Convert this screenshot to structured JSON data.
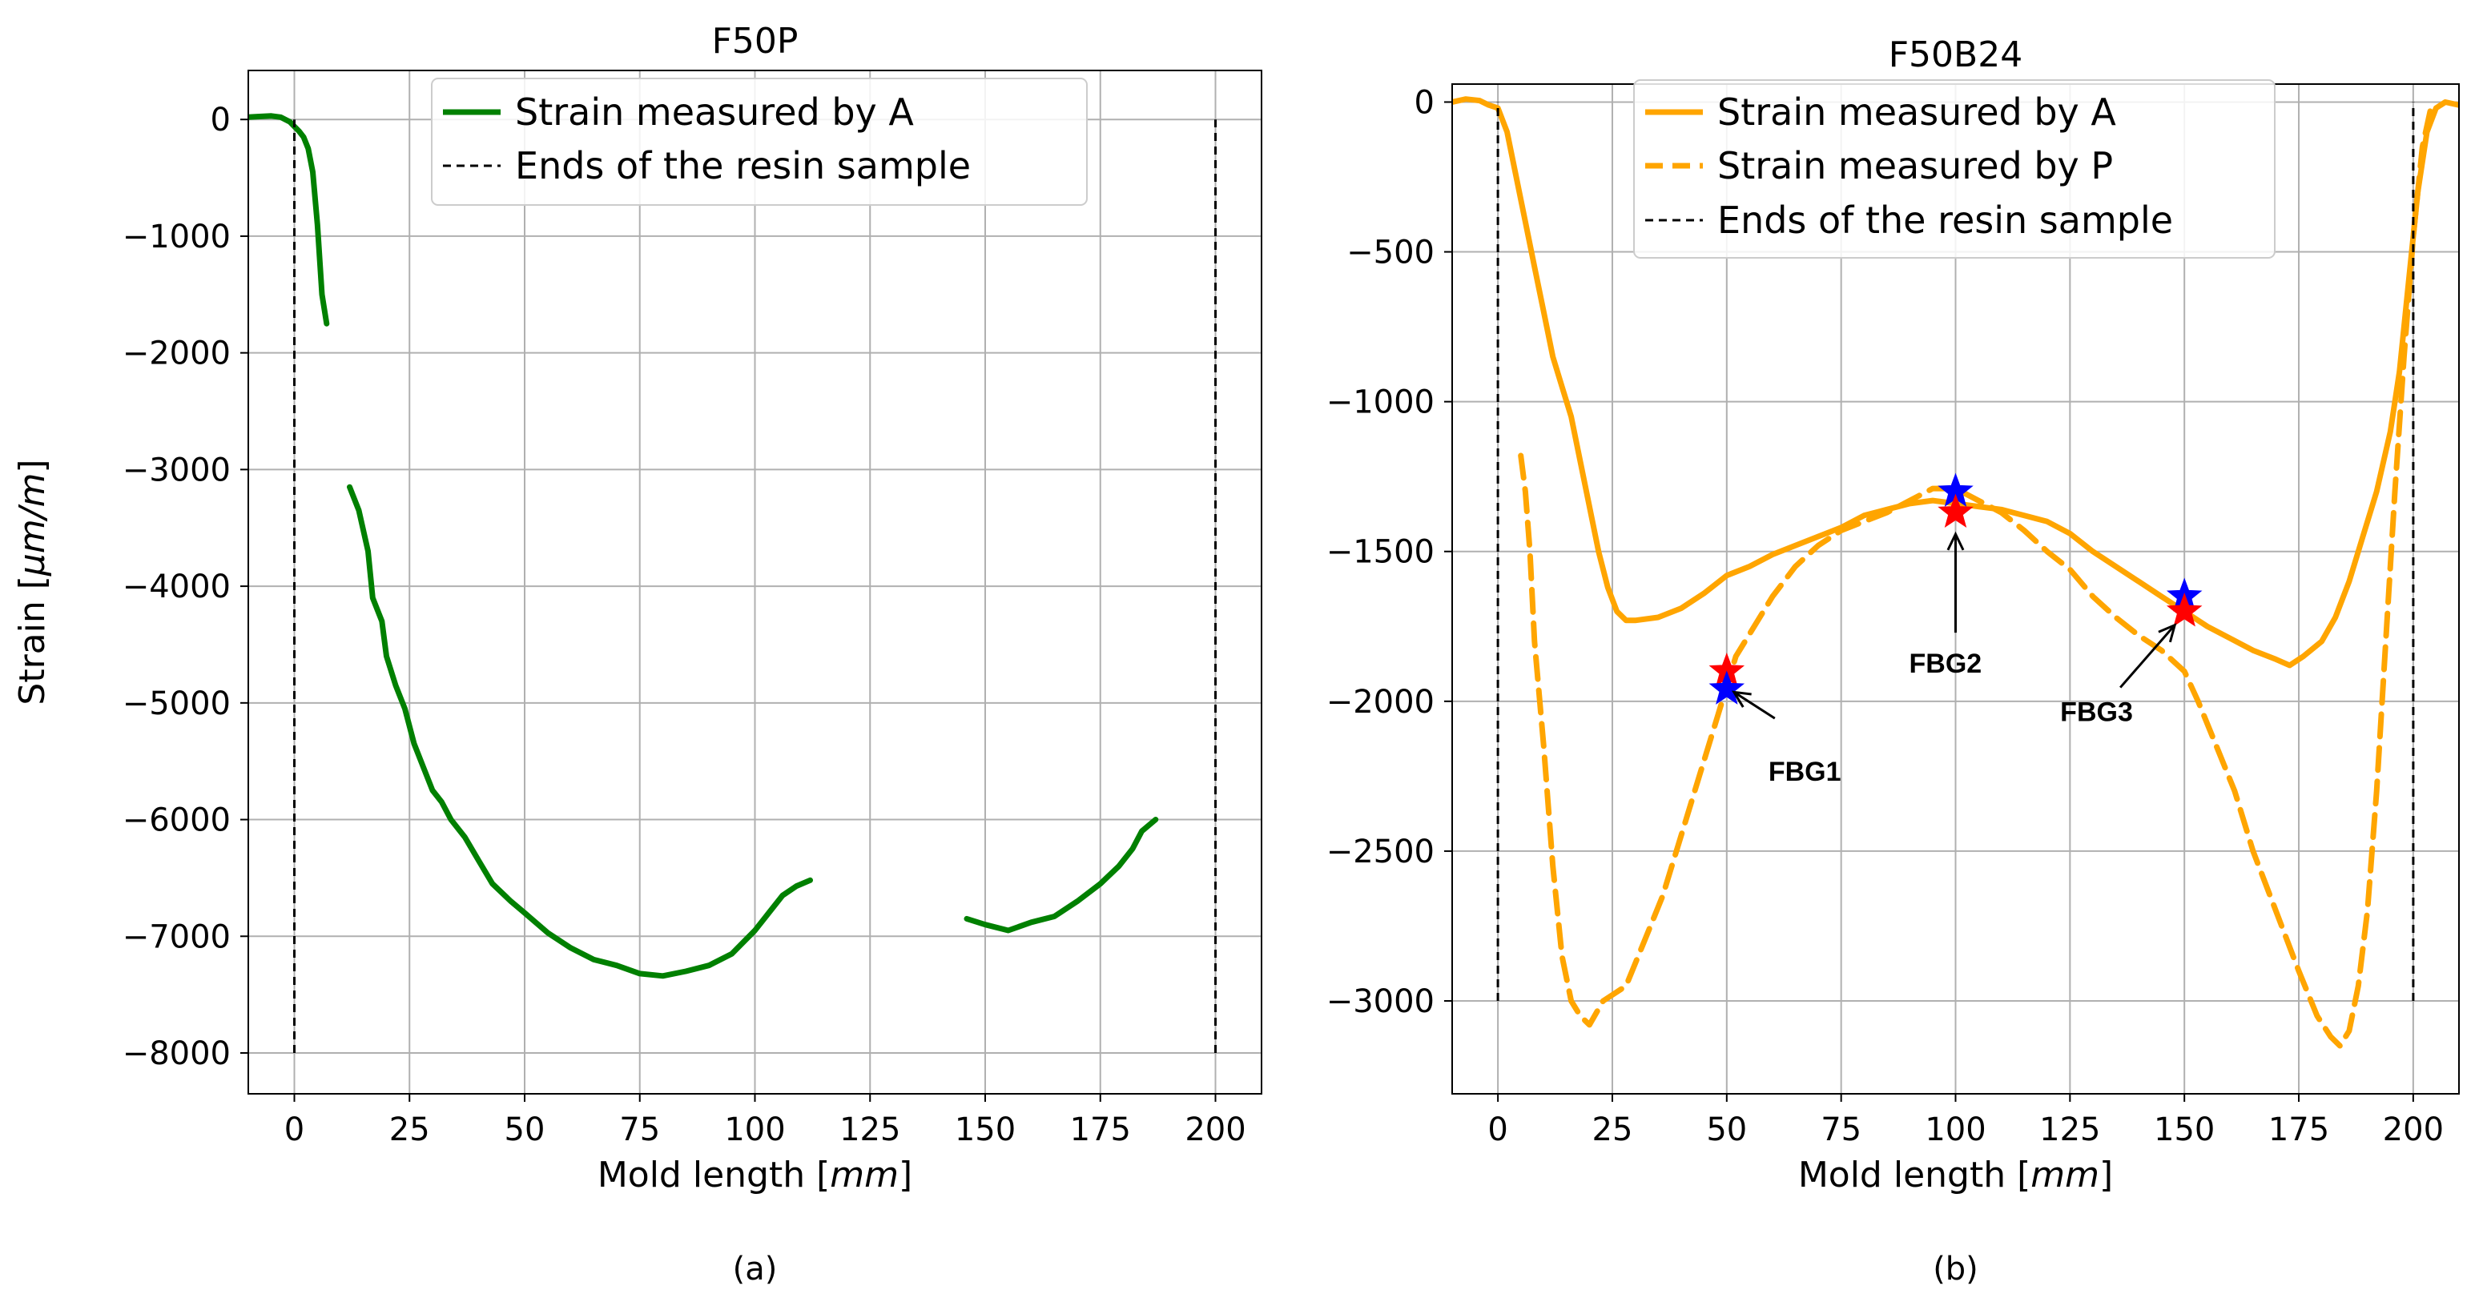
{
  "chart_data": [
    {
      "type": "line",
      "title": "F50P",
      "xlabel": "Mold length",
      "xunit": "mm",
      "ylabel": "Strain",
      "yunit": "μm/m",
      "xlim": [
        -10,
        210
      ],
      "ylim": [
        -8350,
        420
      ],
      "xticks": [
        0,
        25,
        50,
        75,
        100,
        125,
        150,
        175,
        200
      ],
      "xticklabels": [
        "0",
        "25",
        "50",
        "75",
        "100",
        "125",
        "150",
        "175",
        "200"
      ],
      "yticks": [
        0,
        -1000,
        -2000,
        -3000,
        -4000,
        -5000,
        -6000,
        -7000,
        -8000
      ],
      "yticklabels": [
        "0",
        "−1000",
        "−2000",
        "−3000",
        "−4000",
        "−5000",
        "−6000",
        "−7000",
        "−8000"
      ],
      "grid": true,
      "legend_position": "top-center",
      "legend": [
        "Strain measured by A",
        "Ends of the resin sample"
      ],
      "caption": "(a)",
      "series": [
        {
          "name": "Strain measured by A",
          "color": "#008000",
          "style": "solid",
          "segments": [
            [
              [
                -10,
                20
              ],
              [
                -8,
                25
              ],
              [
                -5,
                30
              ],
              [
                -3,
                20
              ],
              [
                -1,
                -20
              ],
              [
                0,
                -60
              ],
              [
                1,
                -100
              ],
              [
                2,
                -150
              ],
              [
                3,
                -250
              ],
              [
                4,
                -450
              ],
              [
                5,
                -900
              ],
              [
                6,
                -1500
              ],
              [
                7,
                -1750
              ]
            ],
            [
              [
                12,
                -3150
              ],
              [
                14,
                -3350
              ],
              [
                16,
                -3700
              ],
              [
                17,
                -4100
              ],
              [
                19,
                -4300
              ],
              [
                20,
                -4600
              ],
              [
                22,
                -4850
              ],
              [
                24,
                -5050
              ],
              [
                26,
                -5350
              ],
              [
                28,
                -5550
              ],
              [
                30,
                -5750
              ],
              [
                32,
                -5850
              ],
              [
                34,
                -6000
              ],
              [
                37,
                -6150
              ],
              [
                40,
                -6350
              ],
              [
                43,
                -6550
              ],
              [
                47,
                -6700
              ],
              [
                50,
                -6800
              ],
              [
                55,
                -6970
              ],
              [
                60,
                -7100
              ],
              [
                65,
                -7200
              ],
              [
                70,
                -7250
              ],
              [
                75,
                -7320
              ],
              [
                80,
                -7340
              ],
              [
                85,
                -7300
              ],
              [
                90,
                -7250
              ],
              [
                95,
                -7150
              ],
              [
                100,
                -6950
              ],
              [
                103,
                -6800
              ],
              [
                106,
                -6650
              ],
              [
                109,
                -6570
              ],
              [
                112,
                -6520
              ]
            ],
            [
              [
                146,
                -6850
              ],
              [
                150,
                -6900
              ],
              [
                155,
                -6950
              ],
              [
                160,
                -6880
              ],
              [
                165,
                -6830
              ],
              [
                170,
                -6700
              ],
              [
                175,
                -6550
              ],
              [
                179,
                -6400
              ],
              [
                182,
                -6250
              ],
              [
                184,
                -6100
              ],
              [
                187,
                -6000
              ]
            ]
          ]
        },
        {
          "name": "Ends of the resin sample",
          "color": "#000000",
          "style": "dashed",
          "segments": [
            [
              [
                0,
                -8000
              ],
              [
                0,
                0
              ]
            ],
            [
              [
                200,
                -8000
              ],
              [
                200,
                0
              ]
            ]
          ]
        }
      ]
    },
    {
      "type": "line",
      "title": "F50B24",
      "xlabel": "Mold length",
      "xunit": "mm",
      "ylabel": "",
      "xlim": [
        -10,
        210
      ],
      "ylim": [
        -3310,
        60
      ],
      "xticks": [
        0,
        25,
        50,
        75,
        100,
        125,
        150,
        175,
        200
      ],
      "xticklabels": [
        "0",
        "25",
        "50",
        "75",
        "100",
        "125",
        "150",
        "175",
        "200"
      ],
      "yticks": [
        0,
        -500,
        -1000,
        -1500,
        -2000,
        -2500,
        -3000
      ],
      "yticklabels": [
        "0",
        "−500",
        "−1000",
        "−1500",
        "−2000",
        "−2500",
        "−3000"
      ],
      "grid": true,
      "legend_position": "top-center",
      "legend": [
        "Strain measured by A",
        "Strain measured by P",
        "Ends of the resin sample"
      ],
      "caption": "(b)",
      "series": [
        {
          "name": "Strain measured by A",
          "color": "#FFA500",
          "style": "solid",
          "segments": [
            [
              [
                -10,
                0
              ],
              [
                -7,
                10
              ],
              [
                -4,
                5
              ],
              [
                -2,
                -10
              ],
              [
                0,
                -20
              ],
              [
                2,
                -100
              ],
              [
                4,
                -250
              ],
              [
                6,
                -400
              ],
              [
                8,
                -550
              ],
              [
                10,
                -700
              ],
              [
                12,
                -850
              ],
              [
                14,
                -950
              ],
              [
                16,
                -1050
              ],
              [
                18,
                -1200
              ],
              [
                20,
                -1350
              ],
              [
                22,
                -1500
              ],
              [
                24,
                -1620
              ],
              [
                26,
                -1700
              ],
              [
                28,
                -1730
              ],
              [
                30,
                -1730
              ],
              [
                35,
                -1720
              ],
              [
                40,
                -1690
              ],
              [
                45,
                -1640
              ],
              [
                50,
                -1580
              ],
              [
                55,
                -1550
              ],
              [
                60,
                -1510
              ],
              [
                65,
                -1480
              ],
              [
                70,
                -1450
              ],
              [
                75,
                -1420
              ],
              [
                80,
                -1380
              ],
              [
                85,
                -1360
              ],
              [
                90,
                -1340
              ],
              [
                95,
                -1330
              ],
              [
                100,
                -1340
              ],
              [
                105,
                -1350
              ],
              [
                110,
                -1360
              ],
              [
                115,
                -1380
              ],
              [
                120,
                -1400
              ],
              [
                125,
                -1440
              ],
              [
                130,
                -1500
              ],
              [
                135,
                -1550
              ],
              [
                140,
                -1600
              ],
              [
                145,
                -1650
              ],
              [
                150,
                -1700
              ],
              [
                155,
                -1750
              ],
              [
                160,
                -1790
              ],
              [
                165,
                -1830
              ],
              [
                170,
                -1860
              ],
              [
                173,
                -1880
              ],
              [
                176,
                -1850
              ],
              [
                180,
                -1800
              ],
              [
                183,
                -1720
              ],
              [
                186,
                -1600
              ],
              [
                189,
                -1450
              ],
              [
                192,
                -1300
              ],
              [
                195,
                -1100
              ],
              [
                197,
                -900
              ],
              [
                199,
                -600
              ],
              [
                201,
                -300
              ],
              [
                203,
                -100
              ],
              [
                205,
                -20
              ],
              [
                207,
                0
              ],
              [
                210,
                -10
              ]
            ]
          ]
        },
        {
          "name": "Strain measured by P",
          "color": "#FFA500",
          "style": "dashed",
          "segments": [
            [
              [
                5,
                -1180
              ],
              [
                6,
                -1300
              ],
              [
                7,
                -1500
              ],
              [
                8,
                -1800
              ],
              [
                10,
                -2150
              ],
              [
                12,
                -2550
              ],
              [
                14,
                -2850
              ],
              [
                16,
                -3000
              ],
              [
                18,
                -3050
              ],
              [
                20,
                -3080
              ],
              [
                23,
                -3000
              ],
              [
                25,
                -2980
              ],
              [
                28,
                -2950
              ],
              [
                32,
                -2800
              ],
              [
                36,
                -2650
              ],
              [
                40,
                -2450
              ],
              [
                44,
                -2250
              ],
              [
                48,
                -2050
              ],
              [
                50,
                -1950
              ],
              [
                52,
                -1850
              ],
              [
                56,
                -1750
              ],
              [
                60,
                -1650
              ],
              [
                65,
                -1550
              ],
              [
                70,
                -1480
              ],
              [
                75,
                -1430
              ],
              [
                80,
                -1400
              ],
              [
                85,
                -1370
              ],
              [
                90,
                -1330
              ],
              [
                95,
                -1290
              ],
              [
                100,
                -1290
              ],
              [
                105,
                -1330
              ],
              [
                110,
                -1370
              ],
              [
                115,
                -1430
              ],
              [
                120,
                -1500
              ],
              [
                125,
                -1560
              ],
              [
                130,
                -1650
              ],
              [
                135,
                -1720
              ],
              [
                140,
                -1780
              ],
              [
                145,
                -1830
              ],
              [
                150,
                -1900
              ],
              [
                153,
                -2000
              ],
              [
                157,
                -2150
              ],
              [
                161,
                -2300
              ],
              [
                165,
                -2500
              ],
              [
                170,
                -2700
              ],
              [
                175,
                -2900
              ],
              [
                179,
                -3050
              ],
              [
                182,
                -3120
              ],
              [
                184,
                -3150
              ],
              [
                186,
                -3100
              ],
              [
                188,
                -2950
              ],
              [
                190,
                -2700
              ],
              [
                192,
                -2300
              ],
              [
                194,
                -1800
              ],
              [
                196,
                -1300
              ],
              [
                198,
                -850
              ],
              [
                200,
                -450
              ],
              [
                202,
                -150
              ],
              [
                204,
                -10
              ]
            ]
          ]
        },
        {
          "name": "Ends of the resin sample",
          "color": "#000000",
          "style": "dashed",
          "segments": [
            [
              [
                0,
                -3000
              ],
              [
                0,
                0
              ]
            ],
            [
              [
                200,
                -3000
              ],
              [
                200,
                0
              ]
            ]
          ]
        }
      ],
      "markers": [
        {
          "label": "FBG1",
          "color": "#FF0000",
          "shape": "star",
          "x": 50,
          "y": -1900
        },
        {
          "label": "FBG1",
          "color": "#0000FF",
          "shape": "star",
          "x": 50,
          "y": -1960
        },
        {
          "label": "FBG2",
          "color": "#0000FF",
          "shape": "star",
          "x": 100,
          "y": -1300
        },
        {
          "label": "FBG2",
          "color": "#FF0000",
          "shape": "star",
          "x": 100,
          "y": -1370
        },
        {
          "label": "FBG3",
          "color": "#0000FF",
          "shape": "star",
          "x": 150,
          "y": -1650
        },
        {
          "label": "FBG3",
          "color": "#FF0000",
          "shape": "star",
          "x": 150,
          "y": -1700
        }
      ],
      "annotations": [
        {
          "text": "FBG1",
          "points_to": [
            50,
            -1950
          ]
        },
        {
          "text": "FBG2",
          "points_to": [
            100,
            -1370
          ]
        },
        {
          "text": "FBG3",
          "points_to": [
            150,
            -1700
          ]
        }
      ]
    }
  ]
}
